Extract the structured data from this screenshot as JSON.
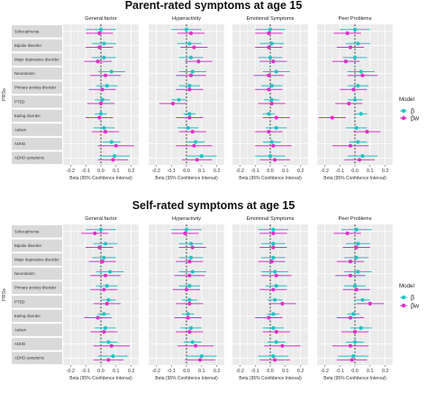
{
  "chart_data": [
    {
      "type": "forest",
      "title": "Parent-rated symptoms at age 15",
      "ylabel": "PRSs",
      "xlabel": "Beta (95% Confidence Interval)",
      "xlim": [
        -0.25,
        0.25
      ],
      "xticks": [
        "-0.2",
        "-0.1",
        "0.0",
        "0.1",
        "0.2"
      ],
      "xtick_values": [
        -0.2,
        -0.1,
        0.0,
        0.1,
        0.2
      ],
      "reference_line": 0,
      "grid": true,
      "legend_position": "right",
      "rows": [
        "Schizophrenia",
        "Bipolar disorder",
        "Major depressive disorder",
        "Neuroticism",
        "Primary anxiety disorder",
        "PTSD",
        "Eating disorder",
        "Autism",
        "ADHD",
        "ADHD symptoms"
      ],
      "facets": [
        {
          "name": "General factor",
          "beta": [
            [
              0.0,
              0.1
            ],
            [
              0.02,
              0.08
            ],
            [
              0.02,
              0.08
            ],
            [
              0.07,
              0.09
            ],
            [
              0.04,
              0.07
            ],
            [
              0.01,
              0.05
            ],
            [
              0.0,
              0.04
            ],
            [
              0.02,
              0.07
            ],
            [
              0.07,
              0.06
            ],
            [
              0.09,
              0.1
            ]
          ],
          "beta_w": [
            [
              -0.01,
              0.09
            ],
            [
              -0.01,
              0.09
            ],
            [
              -0.02,
              0.09
            ],
            [
              0.03,
              0.1
            ],
            [
              0.01,
              0.09
            ],
            [
              0.0,
              0.09
            ],
            [
              -0.01,
              0.09
            ],
            [
              0.03,
              0.09
            ],
            [
              0.1,
              0.12
            ],
            [
              0.08,
              0.1
            ]
          ]
        },
        {
          "name": "Hyperactivity",
          "beta": [
            [
              0.0,
              0.1
            ],
            [
              0.02,
              0.08
            ],
            [
              0.03,
              0.08
            ],
            [
              0.04,
              0.09
            ],
            [
              0.02,
              0.07
            ],
            [
              -0.05,
              0.05
            ],
            [
              0.02,
              0.04
            ],
            [
              0.01,
              0.07
            ],
            [
              0.06,
              0.06
            ],
            [
              0.1,
              0.1
            ]
          ],
          "beta_w": [
            [
              0.03,
              0.09
            ],
            [
              0.05,
              0.09
            ],
            [
              0.08,
              0.09
            ],
            [
              0.03,
              0.1
            ],
            [
              0.02,
              0.09
            ],
            [
              -0.09,
              0.09
            ],
            [
              0.02,
              0.09
            ],
            [
              0.04,
              0.09
            ],
            [
              0.05,
              0.12
            ],
            [
              0.07,
              0.1
            ]
          ]
        },
        {
          "name": "Emotional Symptoms",
          "beta": [
            [
              0.0,
              0.1
            ],
            [
              0.01,
              0.08
            ],
            [
              0.0,
              0.08
            ],
            [
              0.04,
              0.09
            ],
            [
              0.01,
              0.07
            ],
            [
              0.01,
              0.05
            ],
            [
              -0.01,
              0.04
            ],
            [
              0.04,
              0.07
            ],
            [
              0.01,
              0.06
            ],
            [
              0.0,
              0.1
            ]
          ],
          "beta_w": [
            [
              -0.01,
              0.09
            ],
            [
              -0.01,
              0.09
            ],
            [
              0.02,
              0.09
            ],
            [
              -0.01,
              0.1
            ],
            [
              -0.01,
              0.09
            ],
            [
              0.01,
              0.09
            ],
            [
              0.04,
              0.09
            ],
            [
              -0.01,
              0.09
            ],
            [
              0.02,
              0.12
            ],
            [
              0.03,
              0.1
            ]
          ]
        },
        {
          "name": "Peer Problems",
          "beta": [
            [
              0.0,
              0.1
            ],
            [
              0.02,
              0.08
            ],
            [
              0.0,
              0.08
            ],
            [
              0.04,
              0.09
            ],
            [
              0.02,
              0.07
            ],
            [
              0.0,
              0.05
            ],
            [
              0.04,
              0.04
            ],
            [
              0.01,
              0.07
            ],
            [
              0.02,
              0.06
            ],
            [
              0.05,
              0.1
            ]
          ],
          "beta_w": [
            [
              -0.05,
              0.09
            ],
            [
              -0.03,
              0.09
            ],
            [
              -0.06,
              0.09
            ],
            [
              0.05,
              0.1
            ],
            [
              -0.01,
              0.09
            ],
            [
              -0.04,
              0.09
            ],
            [
              -0.15,
              0.09
            ],
            [
              0.08,
              0.09
            ],
            [
              -0.03,
              0.12
            ],
            [
              0.03,
              0.1
            ]
          ]
        }
      ],
      "legend": {
        "title": "Model",
        "entries": [
          {
            "label": "β",
            "color": "#1ec4c4"
          },
          {
            "label": "βw",
            "color": "#e030c8"
          }
        ]
      }
    },
    {
      "type": "forest",
      "title": "Self-rated symptoms at age 15",
      "ylabel": "PRSs",
      "xlabel": "Beta (95% Confidence Interval)",
      "xlim": [
        -0.25,
        0.25
      ],
      "xticks": [
        "-0.2",
        "-0.1",
        "0.0",
        "0.1",
        "0.2"
      ],
      "xtick_values": [
        -0.2,
        -0.1,
        0.0,
        0.1,
        0.2
      ],
      "reference_line": 0,
      "grid": true,
      "legend_position": "right",
      "rows": [
        "Schizophrenia",
        "Bipolar disorder",
        "Major depressive disorder",
        "Neuroticism",
        "Primary anxiety disorder",
        "PTSD",
        "Eating disorder",
        "Autism",
        "ADHD",
        "ADHD symptoms"
      ],
      "facets": [
        {
          "name": "General factor",
          "beta": [
            [
              0.0,
              0.1
            ],
            [
              0.03,
              0.08
            ],
            [
              0.02,
              0.08
            ],
            [
              0.06,
              0.09
            ],
            [
              0.04,
              0.07
            ],
            [
              0.05,
              0.05
            ],
            [
              0.02,
              0.04
            ],
            [
              0.03,
              0.07
            ],
            [
              0.05,
              0.06
            ],
            [
              0.08,
              0.1
            ]
          ],
          "beta_w": [
            [
              -0.04,
              0.09
            ],
            [
              -0.01,
              0.09
            ],
            [
              0.01,
              0.09
            ],
            [
              0.03,
              0.1
            ],
            [
              0.02,
              0.09
            ],
            [
              0.04,
              0.09
            ],
            [
              -0.02,
              0.09
            ],
            [
              0.02,
              0.09
            ],
            [
              0.07,
              0.12
            ],
            [
              0.05,
              0.1
            ]
          ]
        },
        {
          "name": "Hyperactivity",
          "beta": [
            [
              0.0,
              0.1
            ],
            [
              0.03,
              0.08
            ],
            [
              0.03,
              0.08
            ],
            [
              0.04,
              0.09
            ],
            [
              0.02,
              0.07
            ],
            [
              0.02,
              0.05
            ],
            [
              0.01,
              0.04
            ],
            [
              0.03,
              0.07
            ],
            [
              0.04,
              0.06
            ],
            [
              0.1,
              0.1
            ]
          ],
          "beta_w": [
            [
              -0.01,
              0.09
            ],
            [
              0.04,
              0.09
            ],
            [
              0.02,
              0.09
            ],
            [
              0.02,
              0.1
            ],
            [
              0.0,
              0.09
            ],
            [
              0.02,
              0.09
            ],
            [
              0.01,
              0.09
            ],
            [
              0.02,
              0.09
            ],
            [
              0.06,
              0.12
            ],
            [
              0.09,
              0.1
            ]
          ]
        },
        {
          "name": "Emotional Symptoms",
          "beta": [
            [
              0.02,
              0.1
            ],
            [
              0.02,
              0.08
            ],
            [
              0.02,
              0.08
            ],
            [
              0.03,
              0.09
            ],
            [
              0.04,
              0.07
            ],
            [
              0.03,
              0.05
            ],
            [
              0.02,
              0.04
            ],
            [
              0.02,
              0.07
            ],
            [
              0.04,
              0.06
            ],
            [
              0.02,
              0.1
            ]
          ],
          "beta_w": [
            [
              0.02,
              0.09
            ],
            [
              0.02,
              0.09
            ],
            [
              0.01,
              0.09
            ],
            [
              0.04,
              0.1
            ],
            [
              0.02,
              0.09
            ],
            [
              0.08,
              0.09
            ],
            [
              -0.01,
              0.09
            ],
            [
              0.04,
              0.09
            ],
            [
              0.08,
              0.12
            ],
            [
              0.03,
              0.1
            ]
          ]
        },
        {
          "name": "Peer Problems",
          "beta": [
            [
              0.01,
              0.1
            ],
            [
              0.02,
              0.08
            ],
            [
              0.01,
              0.08
            ],
            [
              0.02,
              0.09
            ],
            [
              0.0,
              0.07
            ],
            [
              0.05,
              0.05
            ],
            [
              -0.01,
              0.04
            ],
            [
              0.04,
              0.07
            ],
            [
              0.0,
              0.06
            ],
            [
              -0.01,
              0.1
            ]
          ],
          "beta_w": [
            [
              -0.05,
              0.09
            ],
            [
              0.01,
              0.09
            ],
            [
              -0.03,
              0.09
            ],
            [
              -0.03,
              0.1
            ],
            [
              0.01,
              0.09
            ],
            [
              0.1,
              0.09
            ],
            [
              -0.03,
              0.09
            ],
            [
              0.0,
              0.09
            ],
            [
              -0.03,
              0.12
            ],
            [
              -0.02,
              0.1
            ]
          ]
        }
      ],
      "legend": {
        "title": "Model",
        "entries": [
          {
            "label": "β",
            "color": "#1ec4c4"
          },
          {
            "label": "βw",
            "color": "#e030c8"
          }
        ]
      }
    }
  ]
}
